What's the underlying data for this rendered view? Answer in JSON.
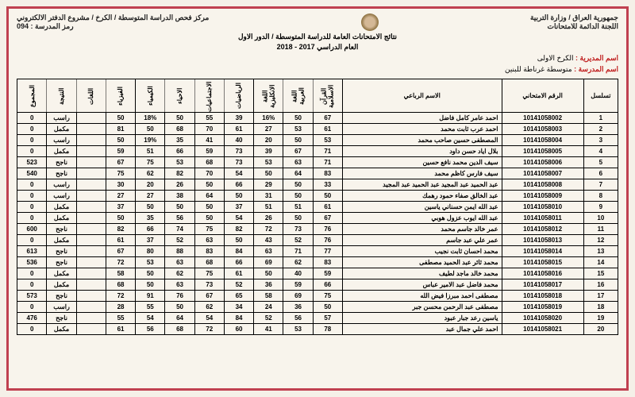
{
  "header": {
    "right1": "جمهورية العراق / وزارة التربية",
    "right2": "اللجنة الدائمة للامتحانات",
    "center1": "نتائج الامتحانات العامة للدراسة المتوسطة / الدور الاول",
    "center2": "العام الدراسي 2017 - 2018",
    "left1": "مركز فحص الدراسة المتوسطة / الكرخ / مشروع الدفتر الالكتروني",
    "left2": "رمز المدرسة : 094"
  },
  "info": {
    "directorate_label": "اسم المديرية :",
    "directorate": "الكرخ الاولى",
    "school_label": "اسم المدرسة :",
    "school": "متوسطة غرناطة للبنين"
  },
  "columns": [
    "تسلسل",
    "الرقم الامتحاني",
    "الاسم الرباعي",
    "القرآن الاسلامية",
    "اللغة العربية",
    "اللغة الانكليزية",
    "الرياضيات",
    "الاجتماعيات",
    "الاحياء",
    "الكيمياء",
    "الفيزياء",
    "اللغات",
    "النتيجة",
    "المجموع"
  ],
  "rows": [
    {
      "n": 1,
      "id": "10141058002",
      "name": "احمد عامر كامل فاضل",
      "s": [
        "67",
        "50",
        "16%",
        "39",
        "55",
        "50",
        "18%",
        "50",
        "",
        "راسب",
        "0"
      ]
    },
    {
      "n": 2,
      "id": "10141058003",
      "name": "احمد عرب ثابت محمد",
      "s": [
        "61",
        "53",
        "27",
        "61",
        "70",
        "68",
        "50",
        "81",
        "",
        "مكمل",
        "0"
      ]
    },
    {
      "n": 3,
      "id": "10141058004",
      "name": "المصطفى حسين صاحب محمد",
      "s": [
        "53",
        "50",
        "20",
        "40",
        "41",
        "35",
        "19%",
        "50",
        "",
        "راسب",
        "0"
      ]
    },
    {
      "n": 4,
      "id": "10141058005",
      "name": "بلال اياد حسن داود",
      "s": [
        "71",
        "67",
        "39",
        "73",
        "59",
        "66",
        "51",
        "59",
        "",
        "مكمل",
        "0"
      ]
    },
    {
      "n": 5,
      "id": "10141058006",
      "name": "سيف الدين محمد نافع حسين",
      "s": [
        "71",
        "63",
        "53",
        "73",
        "68",
        "53",
        "75",
        "67",
        "",
        "ناجح",
        "523"
      ]
    },
    {
      "n": 6,
      "id": "10141058007",
      "name": "سيف فارس كاظم محمد",
      "s": [
        "83",
        "64",
        "50",
        "54",
        "70",
        "82",
        "62",
        "75",
        "",
        "ناجح",
        "540"
      ]
    },
    {
      "n": 7,
      "id": "10141058008",
      "name": "عبد الحميد عبد المجيد عبد الحميد عبد المجيد",
      "s": [
        "33",
        "50",
        "29",
        "66",
        "50",
        "26",
        "20",
        "30",
        "",
        "راسب",
        "0"
      ]
    },
    {
      "n": 8,
      "id": "10141058009",
      "name": "عبد الخالق صفاء حمود رهمك",
      "s": [
        "50",
        "50",
        "31",
        "50",
        "64",
        "38",
        "27",
        "27",
        "",
        "راسب",
        "0"
      ]
    },
    {
      "n": 9,
      "id": "10141058010",
      "name": "عبد الله ايمن حسناني ياسين",
      "s": [
        "61",
        "51",
        "51",
        "37",
        "50",
        "50",
        "50",
        "37",
        "",
        "مكمل",
        "0"
      ]
    },
    {
      "n": 10,
      "id": "10141058011",
      "name": "عبد الله ايوب عزول هوبي",
      "s": [
        "67",
        "50",
        "26",
        "54",
        "50",
        "56",
        "35",
        "50",
        "",
        "مكمل",
        "0"
      ]
    },
    {
      "n": 11,
      "id": "10141058012",
      "name": "عمر خالد جاسم محمد",
      "s": [
        "76",
        "73",
        "72",
        "82",
        "75",
        "74",
        "66",
        "82",
        "",
        "ناجح",
        "600"
      ]
    },
    {
      "n": 12,
      "id": "10141058013",
      "name": "عمر علي عبد جاسم",
      "s": [
        "76",
        "52",
        "43",
        "50",
        "63",
        "52",
        "37",
        "61",
        "",
        "مكمل",
        "0"
      ]
    },
    {
      "n": 13,
      "id": "10141058014",
      "name": "محمد احسان ثابت نجيب",
      "s": [
        "77",
        "71",
        "63",
        "84",
        "83",
        "88",
        "80",
        "67",
        "",
        "ناجح",
        "613"
      ]
    },
    {
      "n": 14,
      "id": "10141058015",
      "name": "محمد ثائر عبد الحميد مصطفى",
      "s": [
        "83",
        "62",
        "69",
        "66",
        "68",
        "63",
        "53",
        "72",
        "",
        "ناجح",
        "536"
      ]
    },
    {
      "n": 15,
      "id": "10141058016",
      "name": "محمد خالد ماجد لطيف",
      "s": [
        "59",
        "40",
        "50",
        "61",
        "75",
        "62",
        "50",
        "58",
        "",
        "مكمل",
        "0"
      ]
    },
    {
      "n": 16,
      "id": "10141058017",
      "name": "محمد فاضل عبد الامير عباس",
      "s": [
        "66",
        "59",
        "36",
        "52",
        "73",
        "63",
        "50",
        "68",
        "",
        "مكمل",
        "0"
      ]
    },
    {
      "n": 17,
      "id": "10141058018",
      "name": "مصطفى احمد مبرزا فيض الله",
      "s": [
        "75",
        "69",
        "58",
        "65",
        "67",
        "76",
        "91",
        "72",
        "",
        "ناجح",
        "573"
      ]
    },
    {
      "n": 18,
      "id": "10141058019",
      "name": "مصطفى عبد الرحمن محسن جبر",
      "s": [
        "50",
        "36",
        "24",
        "34",
        "62",
        "50",
        "55",
        "28",
        "",
        "راسب",
        "0"
      ]
    },
    {
      "n": 19,
      "id": "10141058020",
      "name": "ياسين رعد جبار عبود",
      "s": [
        "57",
        "56",
        "52",
        "84",
        "54",
        "64",
        "54",
        "55",
        "",
        "ناجح",
        "476"
      ]
    },
    {
      "n": 20,
      "id": "10141058021",
      "name": "احمد علي جمال عبد",
      "s": [
        "78",
        "53",
        "41",
        "60",
        "72",
        "68",
        "56",
        "61",
        "",
        "مكمل",
        "0"
      ]
    }
  ]
}
